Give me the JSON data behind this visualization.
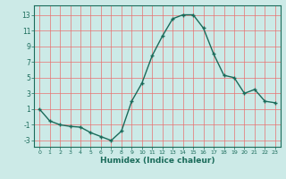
{
  "x": [
    0,
    1,
    2,
    3,
    4,
    5,
    6,
    7,
    8,
    9,
    10,
    11,
    12,
    13,
    14,
    15,
    16,
    17,
    18,
    19,
    20,
    21,
    22,
    23
  ],
  "y": [
    1,
    -0.5,
    -1,
    -1.2,
    -1.3,
    -2,
    -2.5,
    -3,
    -1.8,
    2,
    4.3,
    7.8,
    10.3,
    12.5,
    13,
    13,
    11.3,
    8,
    5.3,
    5,
    3,
    3.5,
    2,
    1.8
  ],
  "line_color": "#1a6b5a",
  "marker": "+",
  "marker_size": 3,
  "bg_color": "#cceae7",
  "grid_color": "#e87070",
  "xlabel": "Humidex (Indice chaleur)",
  "xlim": [
    -0.5,
    23.5
  ],
  "ylim": [
    -3.8,
    14.2
  ],
  "yticks": [
    -3,
    -1,
    1,
    3,
    5,
    7,
    9,
    11,
    13
  ],
  "xticks": [
    0,
    1,
    2,
    3,
    4,
    5,
    6,
    7,
    8,
    9,
    10,
    11,
    12,
    13,
    14,
    15,
    16,
    17,
    18,
    19,
    20,
    21,
    22,
    23
  ]
}
